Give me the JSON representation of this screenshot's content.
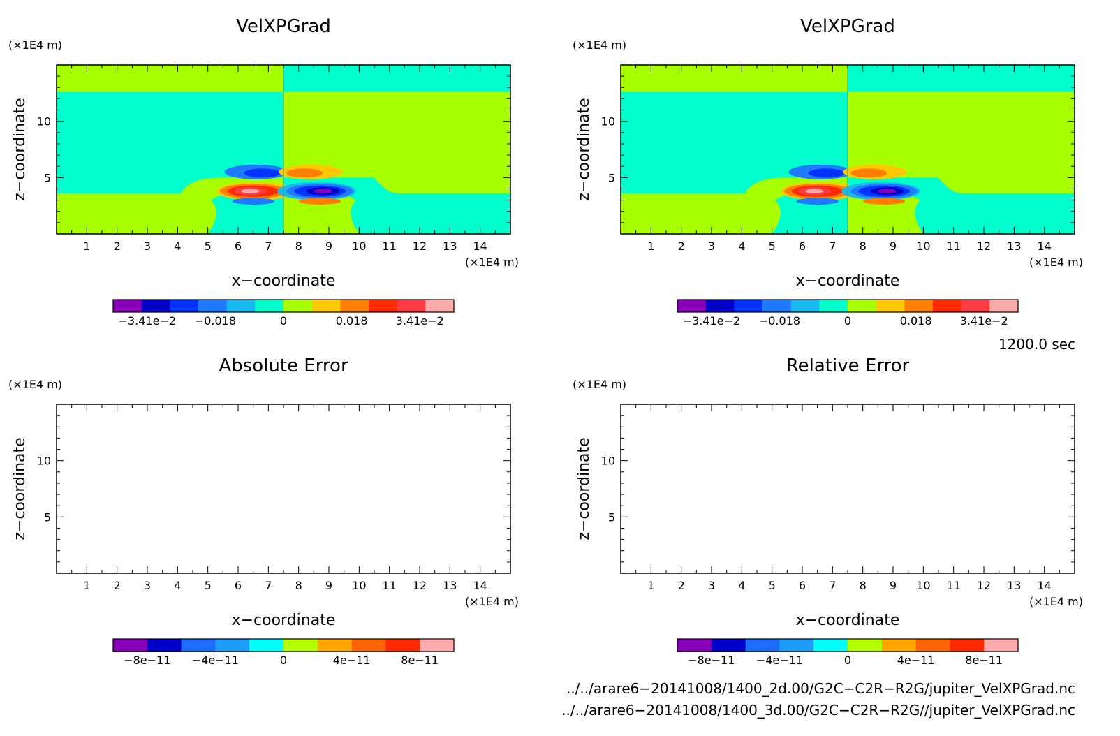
{
  "chart_data": [
    {
      "type": "heatmap",
      "title": "VelXPGrad",
      "xlabel": "x−coordinate",
      "ylabel": "z−coordinate",
      "x_unit": "(×1E4 m)",
      "y_unit": "(×1E4 m)",
      "xticks": [
        "1",
        "2",
        "3",
        "4",
        "5",
        "6",
        "7",
        "8",
        "9",
        "10",
        "11",
        "12",
        "13",
        "14"
      ],
      "yticks": [
        "5",
        "10"
      ],
      "xlim": [
        0,
        15
      ],
      "ylim": [
        0,
        15
      ],
      "colorbar": {
        "labels": [
          "−3.41e−2",
          "−0.018",
          "0",
          "0.018",
          "3.41e−2"
        ],
        "colors": [
          "#8a00b8",
          "#0000c8",
          "#0033ff",
          "#1e7bff",
          "#19b8f0",
          "#00ffcc",
          "#a8ff00",
          "#ffc800",
          "#ff8000",
          "#ff2a00",
          "#ff3c46",
          "#ffaaaa"
        ]
      }
    },
    {
      "type": "heatmap",
      "title": "VelXPGrad",
      "xlabel": "x−coordinate",
      "ylabel": "z−coordinate",
      "x_unit": "(×1E4 m)",
      "y_unit": "(×1E4 m)",
      "xticks": [
        "1",
        "2",
        "3",
        "4",
        "5",
        "6",
        "7",
        "8",
        "9",
        "10",
        "11",
        "12",
        "13",
        "14"
      ],
      "yticks": [
        "5",
        "10"
      ],
      "xlim": [
        0,
        15
      ],
      "ylim": [
        0,
        15
      ],
      "colorbar": {
        "labels": [
          "−3.41e−2",
          "−0.018",
          "0",
          "0.018",
          "3.41e−2"
        ],
        "colors": [
          "#8a00b8",
          "#0000c8",
          "#0033ff",
          "#1e7bff",
          "#19b8f0",
          "#00ffcc",
          "#a8ff00",
          "#ffc800",
          "#ff8000",
          "#ff2a00",
          "#ff3c46",
          "#ffaaaa"
        ]
      }
    },
    {
      "type": "heatmap",
      "title": "Absolute Error",
      "xlabel": "x−coordinate",
      "ylabel": "z−coordinate",
      "x_unit": "(×1E4 m)",
      "y_unit": "(×1E4 m)",
      "xticks": [
        "1",
        "2",
        "3",
        "4",
        "5",
        "6",
        "7",
        "8",
        "9",
        "10",
        "11",
        "12",
        "13",
        "14"
      ],
      "yticks": [
        "5",
        "10"
      ],
      "xlim": [
        0,
        15
      ],
      "ylim": [
        0,
        15
      ],
      "colorbar": {
        "labels": [
          "−8e−11",
          "−4e−11",
          "0",
          "4e−11",
          "8e−11"
        ],
        "colors": [
          "#8a00b8",
          "#0000c8",
          "#1e6bff",
          "#1e9bff",
          "#00ffff",
          "#b4ff00",
          "#ffa500",
          "#ff6400",
          "#ff2a00",
          "#ffaaaa"
        ]
      }
    },
    {
      "type": "heatmap",
      "title": "Relative Error",
      "xlabel": "x−coordinate",
      "ylabel": "z−coordinate",
      "x_unit": "(×1E4 m)",
      "y_unit": "(×1E4 m)",
      "xticks": [
        "1",
        "2",
        "3",
        "4",
        "5",
        "6",
        "7",
        "8",
        "9",
        "10",
        "11",
        "12",
        "13",
        "14"
      ],
      "yticks": [
        "5",
        "10"
      ],
      "xlim": [
        0,
        15
      ],
      "ylim": [
        0,
        15
      ],
      "colorbar": {
        "labels": [
          "−8e−11",
          "−4e−11",
          "0",
          "4e−11",
          "8e−11"
        ],
        "colors": [
          "#8a00b8",
          "#0000c8",
          "#1e6bff",
          "#1e9bff",
          "#00ffff",
          "#b4ff00",
          "#ffa500",
          "#ff6400",
          "#ff2a00",
          "#ffaaaa"
        ]
      }
    }
  ],
  "time_label": "1200.0 sec",
  "files": [
    "../../arare6−20141008/1400_2d.00/G2C−C2R−R2G/jupiter_VelXPGrad.nc",
    "../../arare6−20141008/1400_3d.00/G2C−C2R−R2G//jupiter_VelXPGrad.nc"
  ],
  "colors": {
    "green": "#a8ff00",
    "teal": "#00ffcc"
  }
}
